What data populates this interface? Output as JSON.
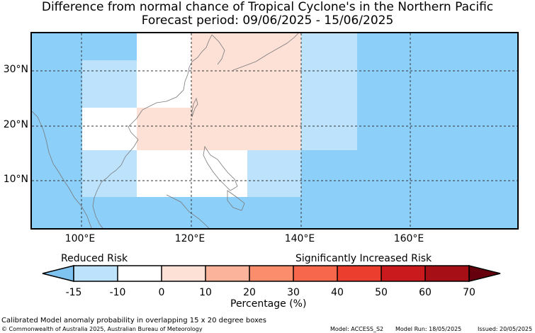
{
  "title_line1": "Difference from normal chance of Tropical Cyclone's in the Northern Pacific",
  "title_line2": "Forecast period: 09/06/2025 - 15/06/2025",
  "lat_labels": [
    "30°N",
    "20°N",
    "10°N"
  ],
  "lon_labels": [
    "100°E",
    "120°E",
    "140°E",
    "160°E"
  ],
  "legend": {
    "reduced": "Reduced Risk",
    "increased": "Significantly Increased Risk",
    "ticks": [
      "-15",
      "-10",
      "0",
      "10",
      "20",
      "30",
      "40",
      "50",
      "60",
      "70"
    ],
    "unit_label": "Percentage (%)",
    "colors": [
      "#7fc4f0",
      "#bde3fc",
      "#ffffff",
      "#fde0d6",
      "#fcb39c",
      "#fb8c6c",
      "#f6674b",
      "#ec3e2f",
      "#ca1a1d",
      "#a50f15",
      "#67000d"
    ]
  },
  "map_colors": {
    "ocean_base": "#8ccff9",
    "reduced_light": "#bde3fc",
    "neutral": "#ffffff",
    "slight_increase": "#fde0d6"
  },
  "footer": {
    "line1": "Calibrated Model anomaly probability in overlapping 15 x 20 degree boxes",
    "copyright": "© Commonwealth of Australia 2025, Australian Bureau of Meteorology",
    "model": "Model: ACCESS_S2",
    "run": "Model Run: 18/05/2025",
    "issued": "Issued: 20/05/2025"
  }
}
